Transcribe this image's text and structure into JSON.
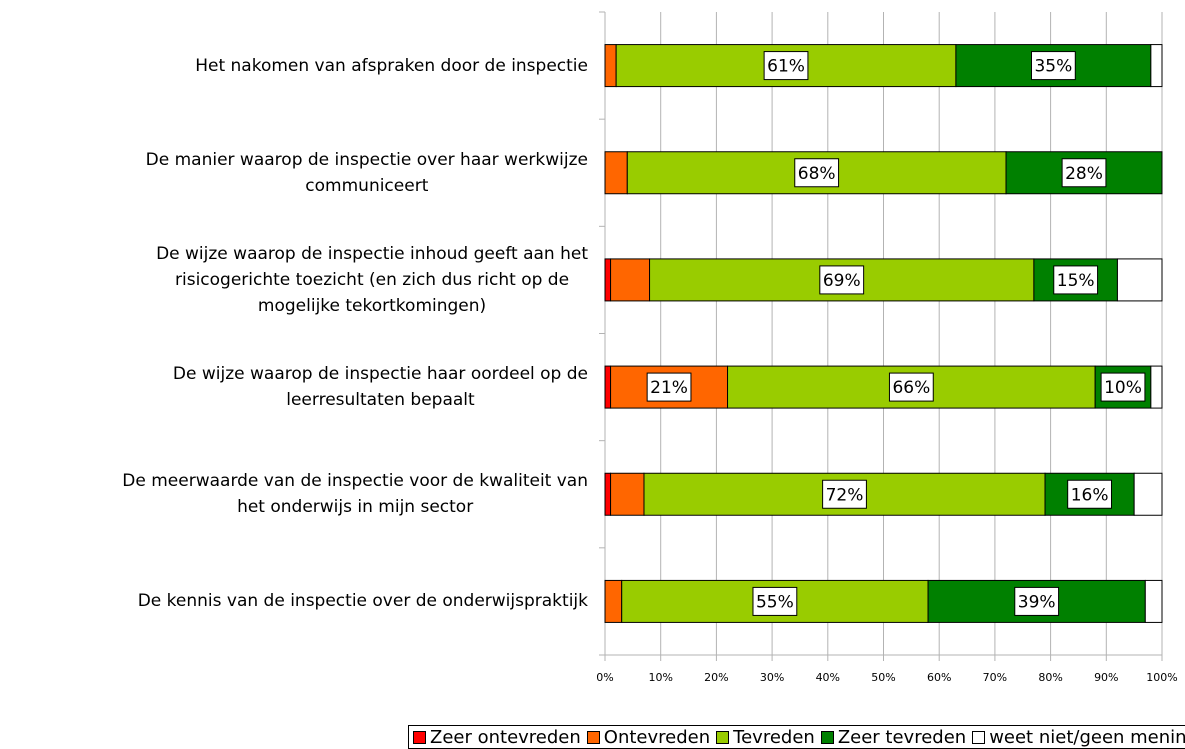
{
  "chart_data": {
    "type": "stacked_barh",
    "categories": [
      "Het nakomen van afspraken door de inspectie",
      "De manier waarop de inspectie over haar werkwijze\ncommuniceert",
      "De wijze waarop de inspectie inhoud geeft aan het\nrisicogerichte toezicht (en zich dus richt op de\nmogelijke tekortkomingen)",
      "De wijze waarop de inspectie haar oordeel op de\nleerresultaten bepaalt",
      "De meerwaarde van de inspectie voor de kwaliteit van\nhet onderwijs in mijn sector",
      "De kennis van de inspectie over de onderwijspraktijk"
    ],
    "series": [
      {
        "name": "Zeer ontevreden",
        "color": "#ff0000",
        "values": [
          0,
          0,
          1,
          1,
          1,
          0
        ],
        "value_labels": [
          null,
          null,
          null,
          null,
          null,
          null
        ]
      },
      {
        "name": "Ontevreden",
        "color": "#ff6600",
        "values": [
          2,
          4,
          7,
          21,
          6,
          3
        ],
        "value_labels": [
          null,
          null,
          null,
          "21%",
          null,
          null
        ]
      },
      {
        "name": "Tevreden",
        "color": "#99cc00",
        "values": [
          61,
          68,
          69,
          66,
          72,
          55
        ],
        "value_labels": [
          "61%",
          "68%",
          "69%",
          "66%",
          "72%",
          "55%"
        ]
      },
      {
        "name": "Zeer tevreden",
        "color": "#008000",
        "values": [
          35,
          28,
          15,
          10,
          16,
          39
        ],
        "value_labels": [
          "35%",
          "28%",
          "15%",
          "10%",
          "16%",
          "39%"
        ]
      },
      {
        "name": "weet niet/geen mening",
        "color": "#ffffff",
        "values": [
          2,
          0,
          8,
          2,
          5,
          3
        ],
        "value_labels": [
          null,
          null,
          null,
          null,
          null,
          null
        ]
      }
    ],
    "xlim": [
      0,
      100
    ],
    "xticks": [
      {
        "value": 0,
        "label": "0%"
      },
      {
        "value": 10,
        "label": "10%"
      },
      {
        "value": 20,
        "label": "20%"
      },
      {
        "value": 30,
        "label": "30%"
      },
      {
        "value": 40,
        "label": "40%"
      },
      {
        "value": 50,
        "label": "50%"
      },
      {
        "value": 60,
        "label": "60%"
      },
      {
        "value": 70,
        "label": "70%"
      },
      {
        "value": 80,
        "label": "80%"
      },
      {
        "value": 90,
        "label": "90%"
      },
      {
        "value": 100,
        "label": "100%"
      }
    ],
    "grid": true,
    "legend": "bottom"
  }
}
